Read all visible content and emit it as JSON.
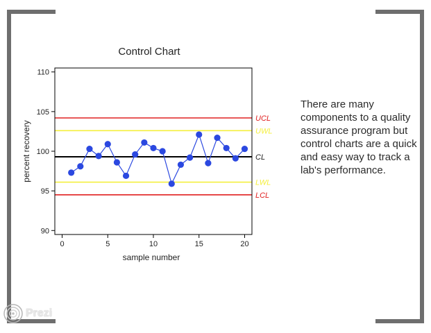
{
  "slide": {
    "body_text": "There are many components to a quality assurance program but control charts are a quick and easy way to track a lab's performance.",
    "logo_text": "Prezi"
  },
  "colors": {
    "bracket": "#6e6e6e",
    "limit_red": "#e02020",
    "limit_yellow": "#f4ef3c",
    "center": "#000000",
    "series": "#2b48e0"
  },
  "chart_data": {
    "type": "line",
    "title": "Control Chart",
    "xlabel": "sample number",
    "ylabel": "percent recovery",
    "xlim": [
      -0.8,
      20.8
    ],
    "ylim": [
      89.5,
      110.5
    ],
    "xticks": [
      0,
      5,
      10,
      15,
      20
    ],
    "yticks": [
      90,
      95,
      100,
      105,
      110
    ],
    "grid": false,
    "series": [
      {
        "x": [
          1,
          2,
          3,
          4,
          5,
          6,
          7,
          8,
          9,
          10,
          11,
          12,
          13,
          14,
          15,
          16,
          17,
          18,
          19,
          20
        ],
        "values": [
          97.3,
          98.1,
          100.3,
          99.4,
          100.9,
          98.6,
          96.9,
          99.6,
          101.1,
          100.4,
          100.0,
          95.9,
          98.3,
          99.2,
          102.1,
          98.5,
          101.7,
          100.4,
          99.1,
          100.3
        ]
      }
    ],
    "control_lines": [
      {
        "label": "UCL",
        "value": 104.2,
        "color": "#e02020"
      },
      {
        "label": "UWL",
        "value": 102.6,
        "color": "#f4ef3c"
      },
      {
        "label": "CL",
        "value": 99.3,
        "color": "#000000"
      },
      {
        "label": "LWL",
        "value": 96.1,
        "color": "#f4ef3c"
      },
      {
        "label": "LCL",
        "value": 94.5,
        "color": "#e02020"
      }
    ]
  }
}
